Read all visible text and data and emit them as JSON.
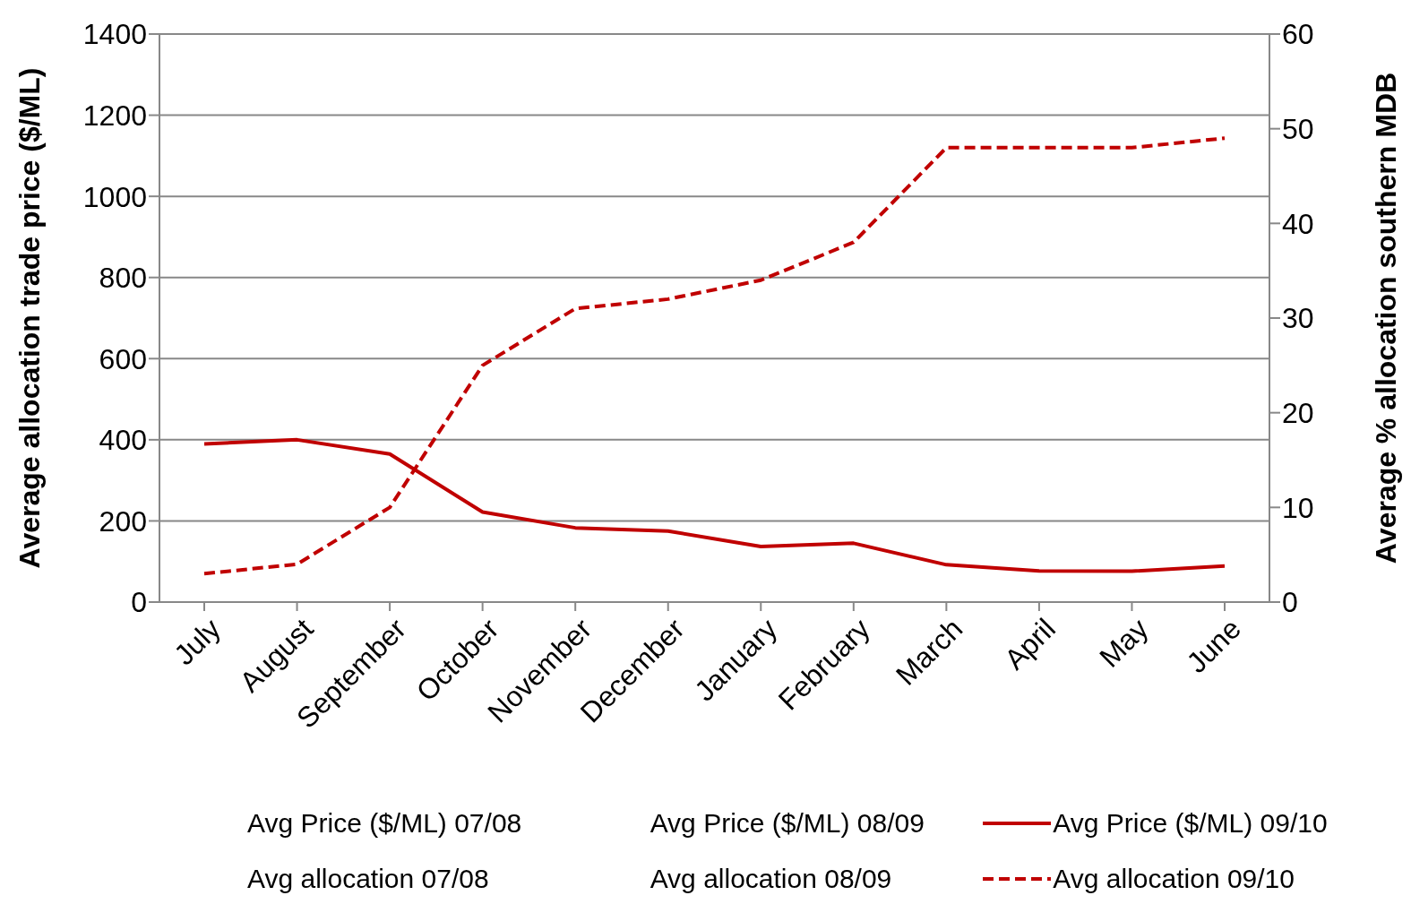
{
  "chart_data": {
    "type": "line",
    "categories": [
      "July",
      "August",
      "September",
      "October",
      "November",
      "December",
      "January",
      "February",
      "March",
      "April",
      "May",
      "June"
    ],
    "ylabel": "Average allocation trade price ($/ML)",
    "y2label": "Average % allocation southern MDB",
    "ylim": [
      0,
      1400
    ],
    "yticks": [
      0,
      200,
      400,
      600,
      800,
      1000,
      1200,
      1400
    ],
    "y2lim": [
      0,
      60
    ],
    "y2ticks": [
      0,
      10,
      20,
      30,
      40,
      50,
      60
    ],
    "grid": "y",
    "legend": "bottom",
    "marker": "none",
    "series": [
      {
        "name": "Avg Price ($/ML) 07/08",
        "values": [
          null,
          null,
          null,
          null,
          null,
          null,
          null,
          null,
          null,
          null,
          null,
          null
        ],
        "line_style": "solid"
      },
      {
        "name": "Avg Price ($/ML) 08/09",
        "values": [
          null,
          null,
          null,
          null,
          null,
          null,
          null,
          null,
          null,
          null,
          null,
          null
        ],
        "line_style": "solid"
      },
      {
        "name": "Avg Price ($/ML) 09/10",
        "color": "#c00000",
        "values": [
          390,
          400,
          365,
          222,
          183,
          175,
          137,
          145,
          92,
          77,
          76,
          89
        ],
        "line_style": "solid"
      },
      {
        "name": "Avg allocation 07/08",
        "axis": "y2",
        "values": [
          null,
          null,
          null,
          null,
          null,
          null,
          null,
          null,
          null,
          null,
          null,
          null
        ],
        "line_style": "dashed"
      },
      {
        "name": "Avg allocation 08/09",
        "axis": "y2",
        "values": [
          null,
          null,
          null,
          null,
          null,
          null,
          null,
          null,
          null,
          null,
          null,
          null
        ],
        "line_style": "dashed"
      },
      {
        "name": "Avg allocation 09/10",
        "color": "#c00000",
        "axis": "y2",
        "values": [
          3,
          4,
          10,
          25,
          31,
          32,
          34,
          38,
          48,
          48,
          48,
          49
        ],
        "line_style": "dashed"
      }
    ]
  }
}
